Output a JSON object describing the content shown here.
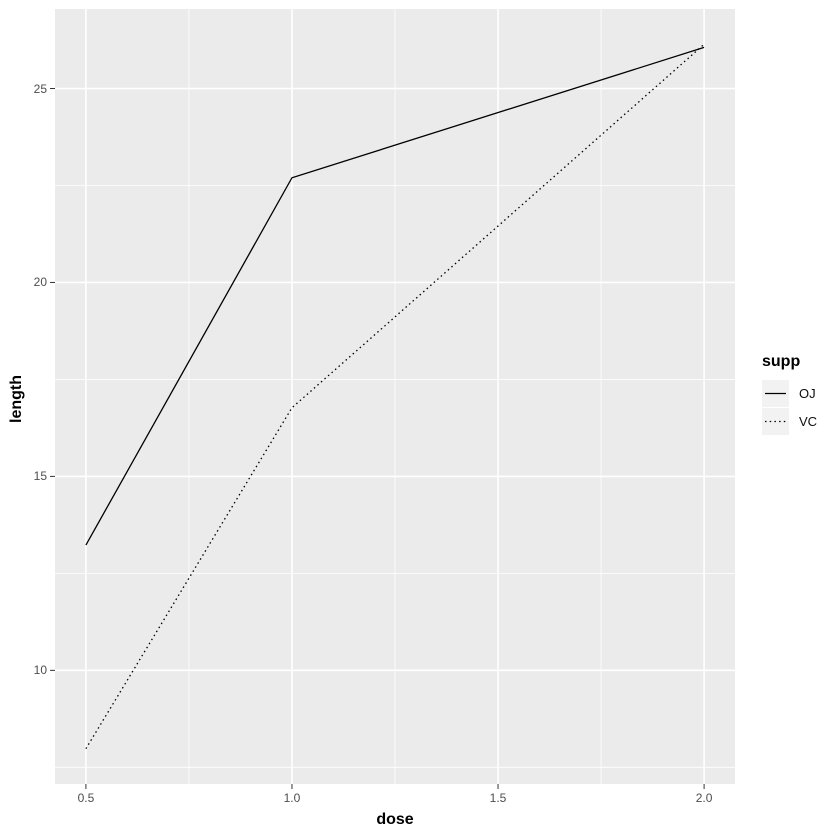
{
  "chart_data": {
    "type": "line",
    "title": "",
    "xlabel": "dose",
    "ylabel": "length",
    "x": [
      0.5,
      1.0,
      2.0
    ],
    "series": [
      {
        "name": "OJ",
        "values": [
          13.23,
          22.7,
          26.06
        ],
        "linetype": "solid",
        "color": "#000000"
      },
      {
        "name": "VC",
        "values": [
          7.98,
          16.77,
          26.14
        ],
        "linetype": "dotted",
        "color": "#000000"
      }
    ],
    "xlim": [
      0.425,
      2.075
    ],
    "ylim": [
      7.07,
      27.05
    ],
    "x_ticks": {
      "values": [
        0.5,
        1.0,
        1.5,
        2.0
      ],
      "labels": [
        "0.5",
        "1.0",
        "1.5",
        "2.0"
      ]
    },
    "y_ticks": {
      "values": [
        10,
        15,
        20,
        25
      ],
      "labels": [
        "10",
        "15",
        "20",
        "25"
      ]
    },
    "x_minor": [
      0.75,
      1.25,
      1.75
    ],
    "y_minor": [
      7.5,
      12.5,
      17.5,
      22.5
    ],
    "grid": true,
    "legend": {
      "title": "supp",
      "position": "right",
      "entries": [
        {
          "label": "OJ",
          "linetype": "solid"
        },
        {
          "label": "VC",
          "linetype": "dotted"
        }
      ]
    },
    "colors": {
      "panel": "#EBEBEB",
      "grid": "#FFFFFF",
      "tick_text": "#4D4D4D",
      "tick_mark": "#333333",
      "axis_text": "#000000",
      "legend_key": "#F2F2F2",
      "line": "#000000"
    }
  }
}
